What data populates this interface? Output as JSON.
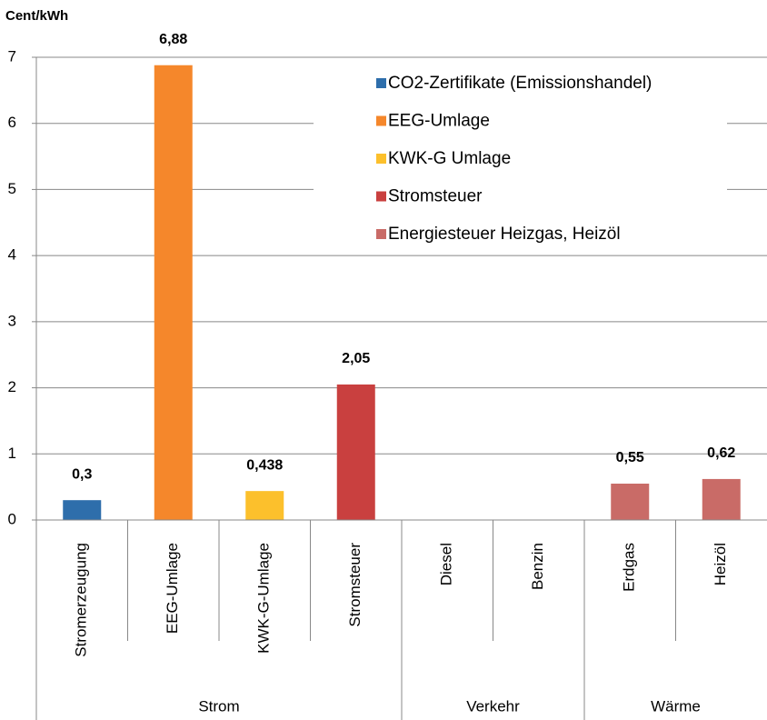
{
  "chart_data": {
    "type": "bar",
    "axis_label": "Cent/kWh",
    "groups": [
      {
        "label": "Strom",
        "categories": [
          "Stromerzeugung",
          "EEG-Umlage",
          "KWK-G-Umlage",
          "Stromsteuer"
        ]
      },
      {
        "label": "Verkehr",
        "categories": [
          "Diesel",
          "Benzin"
        ]
      },
      {
        "label": "Wärme",
        "categories": [
          "Erdgas",
          "Heizöl"
        ]
      }
    ],
    "series": [
      {
        "name": "CO2-Zertifikate (Emissionshandel)",
        "color": "#2e6eab",
        "values": [
          0.3,
          null,
          null,
          null,
          null,
          null,
          null,
          null
        ],
        "value_labels": [
          "0,3",
          null,
          null,
          null,
          null,
          null,
          null,
          null
        ]
      },
      {
        "name": "EEG-Umlage",
        "color": "#f5872b",
        "values": [
          null,
          6.88,
          null,
          null,
          null,
          null,
          null,
          null
        ],
        "value_labels": [
          null,
          "6,88",
          null,
          null,
          null,
          null,
          null,
          null
        ]
      },
      {
        "name": "KWK-G Umlage",
        "color": "#fcc02c",
        "values": [
          null,
          null,
          0.438,
          null,
          null,
          null,
          null,
          null
        ],
        "value_labels": [
          null,
          null,
          "0,438",
          null,
          null,
          null,
          null,
          null
        ]
      },
      {
        "name": "Stromsteuer",
        "color": "#c9403f",
        "values": [
          null,
          null,
          null,
          2.05,
          null,
          null,
          null,
          null
        ],
        "value_labels": [
          null,
          null,
          null,
          "2,05",
          null,
          null,
          null,
          null
        ]
      },
      {
        "name": "Energiesteuer Heizgas, Heizöl",
        "color": "#c96b67",
        "values": [
          null,
          null,
          null,
          null,
          null,
          null,
          0.55,
          0.62
        ],
        "value_labels": [
          null,
          null,
          null,
          null,
          null,
          null,
          "0,55",
          "0,62"
        ]
      }
    ],
    "ylim": [
      0,
      7
    ],
    "yticks": [
      0,
      1,
      2,
      3,
      4,
      5,
      6,
      7
    ],
    "grid": true,
    "legend": "top-right"
  }
}
